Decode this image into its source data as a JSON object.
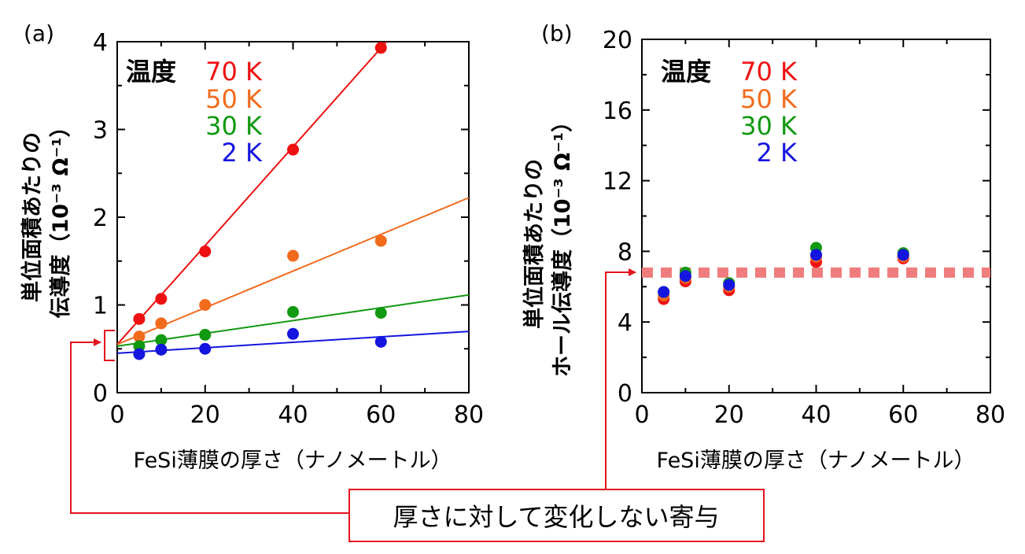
{
  "callout_text": "厚さに対して変化しない寄与",
  "colors": {
    "series_70K": "#ee1111",
    "series_50K": "#f26b1d",
    "series_30K": "#119911",
    "series_2K": "#1515e0",
    "dashed_line": "#f07d7d",
    "callout": "#e4141b"
  },
  "chart_data": [
    {
      "type": "scatter",
      "panel_label": "(a)",
      "xlabel": "FeSi薄膜の厚さ（ナノメートル）",
      "ylabel_line1": "単位面積あたりの",
      "ylabel_line2": "伝導度（10⁻³ Ω⁻¹）",
      "xlim": [
        0,
        80
      ],
      "ylim": [
        0,
        4
      ],
      "x_ticks": [
        "0",
        "20",
        "40",
        "60",
        "80"
      ],
      "y_ticks": [
        "0",
        "1",
        "2",
        "3",
        "4"
      ],
      "legend_title": "温度",
      "legend_position": "top-left",
      "grid": false,
      "series": [
        {
          "name": "70 K",
          "x": [
            5,
            10,
            20,
            40,
            60
          ],
          "y": [
            0.84,
            1.07,
            1.61,
            2.77,
            3.93
          ],
          "fit": {
            "intercept": 0.55,
            "slope": 0.0563
          }
        },
        {
          "name": "50 K",
          "x": [
            5,
            10,
            20,
            40,
            60
          ],
          "y": [
            0.64,
            0.79,
            1.0,
            1.56,
            1.73
          ],
          "fit": {
            "intercept": 0.55,
            "slope": 0.0209
          }
        },
        {
          "name": "30 K",
          "x": [
            5,
            10,
            20,
            40,
            60
          ],
          "y": [
            0.53,
            0.6,
            0.66,
            0.92,
            0.91
          ],
          "fit": {
            "intercept": 0.53,
            "slope": 0.0073
          }
        },
        {
          "name": "2 K",
          "x": [
            5,
            10,
            20,
            40,
            60
          ],
          "y": [
            0.44,
            0.49,
            0.5,
            0.67,
            0.58
          ],
          "fit": {
            "intercept": 0.45,
            "slope": 0.0031
          }
        }
      ]
    },
    {
      "type": "scatter",
      "panel_label": "(b)",
      "xlabel": "FeSi薄膜の厚さ（ナノメートル）",
      "ylabel_line1": "単位面積あたりの",
      "ylabel_line2": "ホール伝導度（10⁻³ Ω⁻¹）",
      "xlim": [
        0,
        80
      ],
      "ylim": [
        0,
        20
      ],
      "x_ticks": [
        "0",
        "20",
        "40",
        "60",
        "80"
      ],
      "y_ticks": [
        "0",
        "4",
        "8",
        "12",
        "16",
        "20"
      ],
      "legend_title": "温度",
      "legend_position": "top-left",
      "grid": false,
      "reference_line_y": 6.8,
      "series": [
        {
          "name": "70 K",
          "x": [
            5,
            10,
            20,
            40,
            60
          ],
          "y": [
            5.3,
            6.3,
            5.8,
            7.4,
            7.6
          ]
        },
        {
          "name": "50 K",
          "x": [
            5,
            10,
            20,
            40,
            60
          ],
          "y": [
            5.5,
            6.5,
            6.0,
            7.7,
            7.7
          ]
        },
        {
          "name": "30 K",
          "x": [
            5,
            10,
            20,
            40,
            60
          ],
          "y": [
            5.7,
            6.8,
            6.2,
            8.2,
            7.9
          ]
        },
        {
          "name": "2 K",
          "x": [
            5,
            10,
            20,
            40,
            60
          ],
          "y": [
            5.7,
            6.6,
            6.1,
            7.8,
            7.8
          ]
        }
      ]
    }
  ]
}
